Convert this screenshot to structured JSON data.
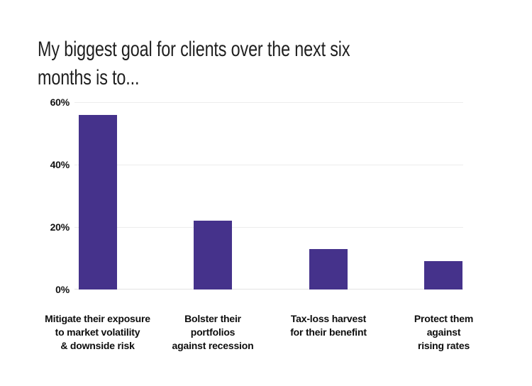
{
  "title": {
    "text": "My biggest goal for clients over the next six\nmonths is to..."
  },
  "chart_data": {
    "type": "bar",
    "title": "My biggest goal for clients over the next six months is to...",
    "categories": [
      "Mitigate their exposure to market volatility & downside risk",
      "Bolster their portfolios against recession",
      "Tax-loss harvest for their benefint",
      "Protect them against rising rates"
    ],
    "categories_display": [
      "Mitigate their exposure\nto market volatility\n& downside risk",
      "Bolster their\nportfolios\nagainst recession",
      "Tax-loss harvest\nfor their benefint",
      "Protect them\nagainst\nrising rates"
    ],
    "values": [
      56,
      22,
      13,
      9
    ],
    "value_unit": "%",
    "xlabel": "",
    "ylabel": "",
    "ylim": [
      0,
      60
    ],
    "yticks": [
      0,
      20,
      40,
      60
    ],
    "ytick_labels": [
      "0%",
      "20%",
      "40%",
      "60%"
    ],
    "grid": "horizontal",
    "legend": "none",
    "bar_color": "#45328B",
    "gridline_color": "#ededed",
    "axis_line_color": "#e2e2e2",
    "text_color": "#1f1f1f",
    "background_color": "#ffffff"
  }
}
